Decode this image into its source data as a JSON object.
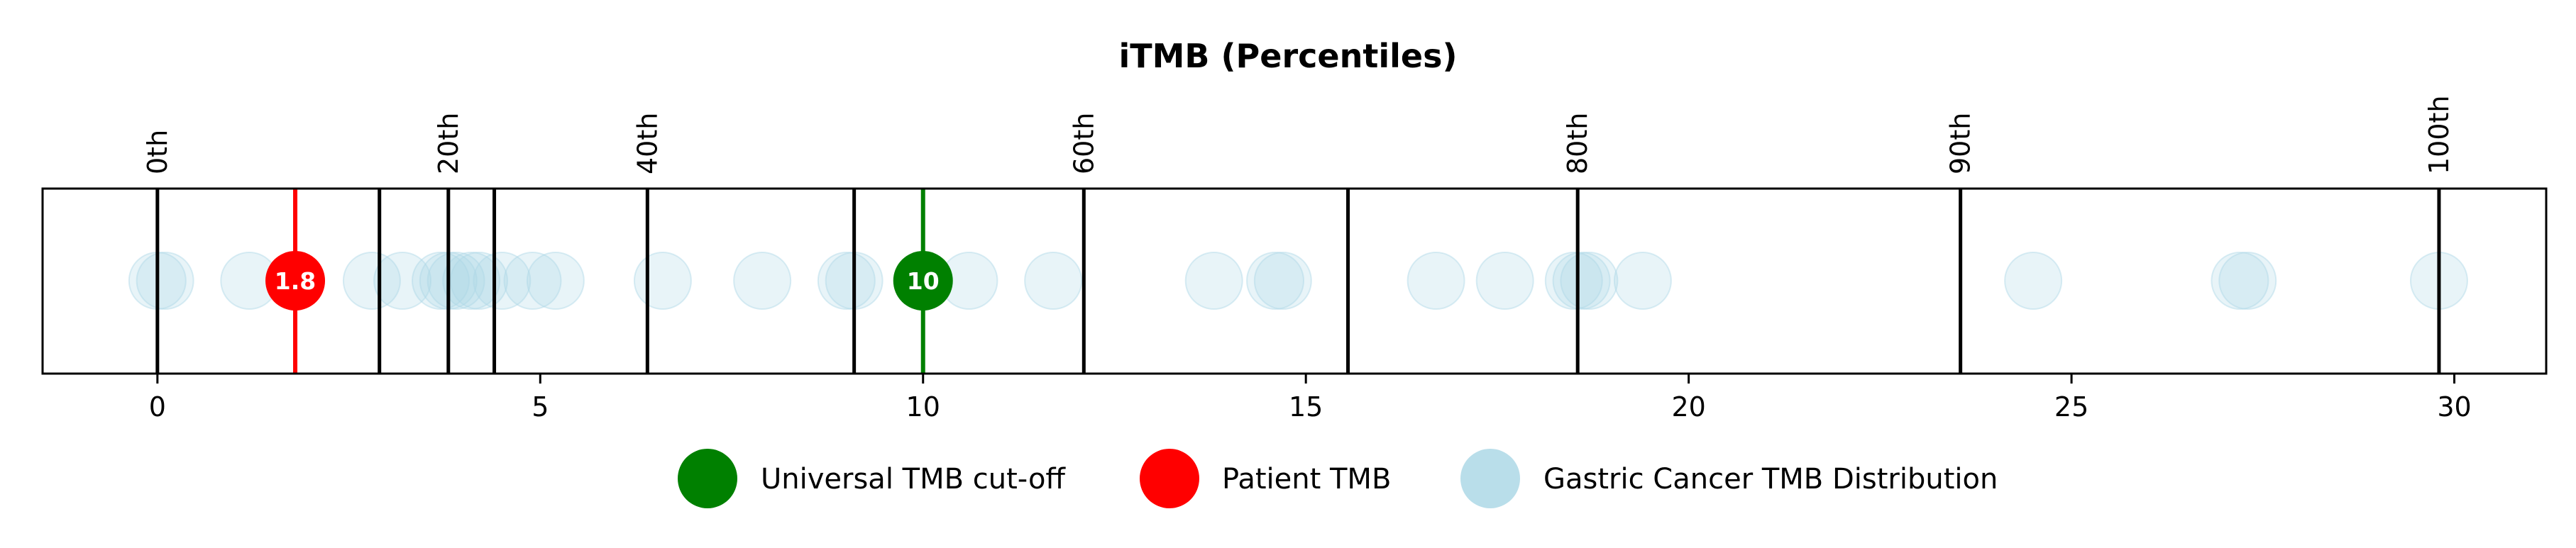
{
  "chart_data": {
    "type": "scatter",
    "title": "iTMB (Percentiles)",
    "xlabel": "",
    "ylabel": "",
    "xlim": [
      -1.5,
      31.2
    ],
    "x_ticks": [
      0,
      5,
      10,
      15,
      20,
      25,
      30
    ],
    "grid": false,
    "legend_placement": "bottom-center",
    "percentile_markers": [
      {
        "label": "0th",
        "x": 0.0
      },
      {
        "label": "",
        "x": 2.9
      },
      {
        "label": "20th",
        "x": 3.8
      },
      {
        "label": "",
        "x": 4.4
      },
      {
        "label": "40th",
        "x": 6.4
      },
      {
        "label": "",
        "x": 9.1
      },
      {
        "label": "60th",
        "x": 12.1
      },
      {
        "label": "",
        "x": 15.55
      },
      {
        "label": "80th",
        "x": 18.55
      },
      {
        "label": "90th",
        "x": 23.55
      },
      {
        "label": "100th",
        "x": 29.8
      }
    ],
    "cutoff": {
      "name": "Universal TMB cut-off",
      "x": 10,
      "label": "10",
      "color": "#008000"
    },
    "patient": {
      "name": "Patient TMB",
      "x": 1.8,
      "label": "1.8",
      "color": "#ff0000"
    },
    "distribution": {
      "name": "Gastric Cancer TMB Distribution",
      "color": "#add8e6",
      "x": [
        0.0,
        0.1,
        1.2,
        2.8,
        3.2,
        3.7,
        3.8,
        3.9,
        4.1,
        4.2,
        4.5,
        4.9,
        5.2,
        6.6,
        7.9,
        9.0,
        9.1,
        10.6,
        11.7,
        13.8,
        14.6,
        14.7,
        16.7,
        17.6,
        18.5,
        18.6,
        18.7,
        19.4,
        24.5,
        27.2,
        27.3,
        29.8
      ]
    }
  }
}
